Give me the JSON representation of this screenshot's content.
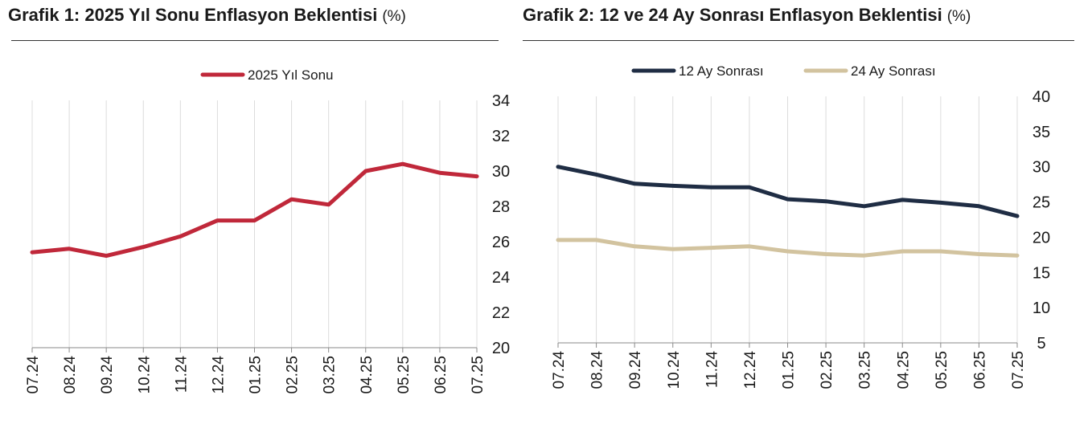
{
  "charts": [
    {
      "title": "Grafik 1: 2025 Yıl Sonu Enflasyon Beklentisi",
      "unit": "(%)"
    },
    {
      "title": "Grafik 2: 12 ve 24 Ay Sonrası Enflasyon Beklentisi",
      "unit": "(%)"
    }
  ],
  "chart_data": [
    {
      "type": "line",
      "title": "Grafik 1: 2025 Yıl Sonu Enflasyon Beklentisi (%)",
      "categories": [
        "07.24",
        "08.24",
        "09.24",
        "10.24",
        "11.24",
        "12.24",
        "01.25",
        "02.25",
        "03.25",
        "04.25",
        "05.25",
        "06.25",
        "07.25"
      ],
      "series": [
        {
          "name": "2025 Yıl Sonu",
          "color": "#c0283a",
          "values": [
            25.4,
            25.6,
            25.2,
            25.7,
            26.3,
            27.2,
            27.2,
            28.4,
            28.1,
            30.0,
            30.4,
            29.9,
            29.7
          ]
        }
      ],
      "ylim": [
        20,
        34
      ],
      "yticks": [
        20,
        22,
        24,
        26,
        28,
        30,
        32,
        34
      ],
      "y_axis_side": "right",
      "grid": "vertical",
      "legend": "top-center"
    },
    {
      "type": "line",
      "title": "Grafik 2: 12 ve 24 Ay Sonrası Enflasyon Beklentisi (%)",
      "categories": [
        "07.24",
        "08.24",
        "09.24",
        "10.24",
        "11.24",
        "12.24",
        "01.25",
        "02.25",
        "03.25",
        "04.25",
        "05.25",
        "06.25",
        "07.25"
      ],
      "series": [
        {
          "name": "12 Ay Sonrası",
          "color": "#1f2d44",
          "values": [
            30.0,
            28.9,
            27.6,
            27.3,
            27.1,
            27.1,
            25.4,
            25.1,
            24.4,
            25.3,
            24.9,
            24.4,
            23.0
          ]
        },
        {
          "name": "24 Ay Sonrası",
          "color": "#d2c39f",
          "values": [
            19.6,
            19.6,
            18.7,
            18.3,
            18.5,
            18.7,
            18.0,
            17.6,
            17.4,
            18.0,
            18.0,
            17.6,
            17.4
          ]
        }
      ],
      "ylim": [
        5,
        40
      ],
      "yticks": [
        5,
        10,
        15,
        20,
        25,
        30,
        35,
        40
      ],
      "y_axis_side": "right",
      "grid": "vertical",
      "legend": "top-center"
    }
  ]
}
